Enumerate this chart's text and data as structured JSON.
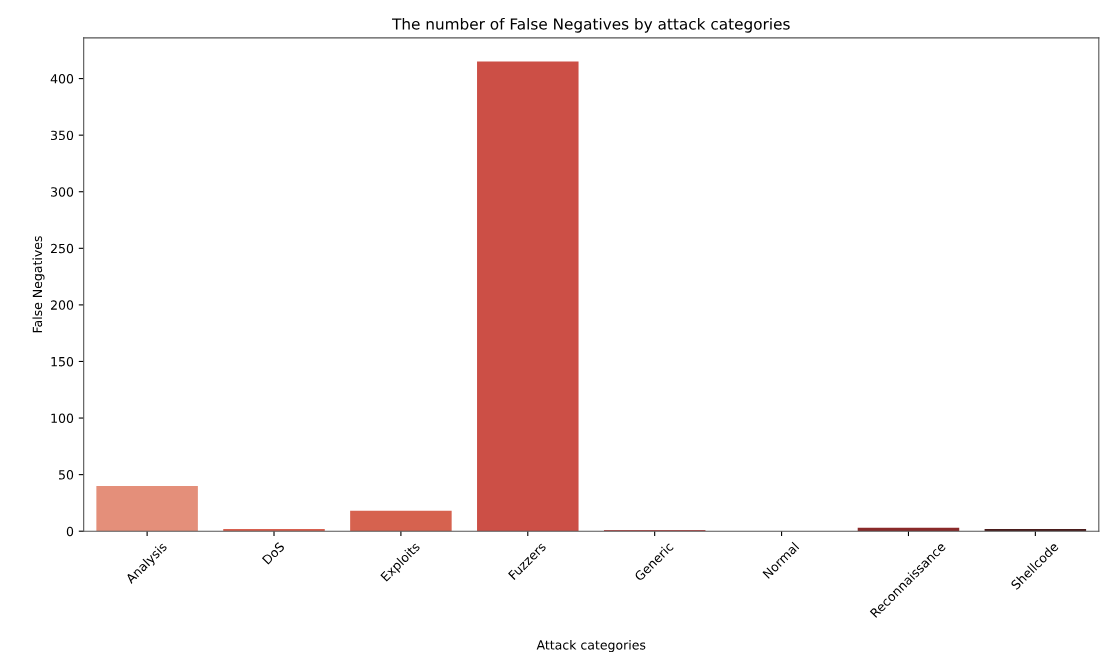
{
  "chart_data": {
    "type": "bar",
    "title": "The number of False Negatives by attack categories",
    "xlabel": "Attack categories",
    "ylabel": "False Negatives",
    "categories": [
      "Analysis",
      "DoS",
      "Exploits",
      "Fuzzers",
      "Generic",
      "Normal",
      "Reconnaissance",
      "Shellcode"
    ],
    "values": [
      40,
      2,
      18,
      415,
      1,
      0,
      3,
      2
    ],
    "colors": [
      "#e48f7a",
      "#d8604f",
      "#d6624f",
      "#cc4f46",
      "#b65150",
      "#a03a3a",
      "#8a2a2a",
      "#4a1c1c"
    ],
    "ylim": [
      0,
      436
    ],
    "yticks": [
      0,
      50,
      100,
      150,
      200,
      250,
      300,
      350,
      400
    ],
    "grid": false,
    "legend": false
  }
}
